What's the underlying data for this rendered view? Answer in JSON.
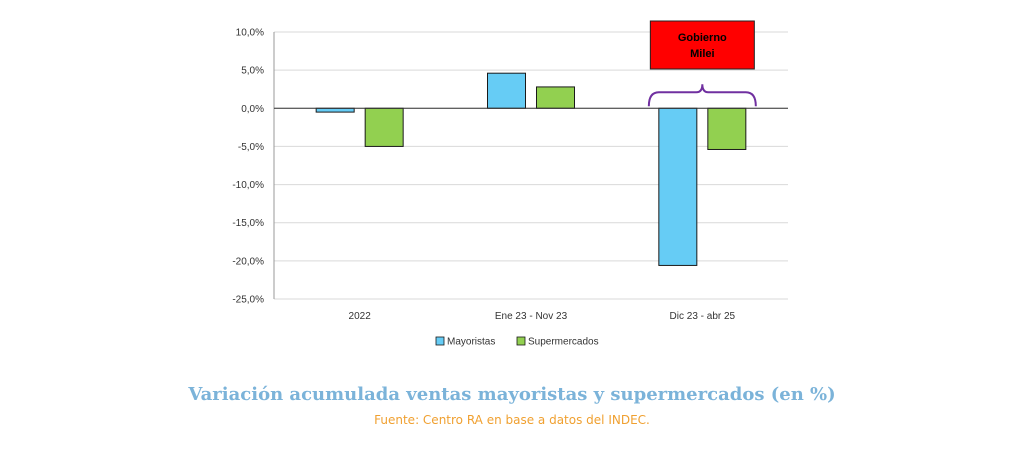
{
  "chart_data": {
    "type": "bar",
    "categories": [
      "2022",
      "Ene 23 - Nov 23",
      "Dic 23 - abr 25"
    ],
    "series": [
      {
        "name": "Mayoristas",
        "values": [
          -0.5,
          4.6,
          -20.6
        ],
        "color": "#66CCF5"
      },
      {
        "name": "Supermercados",
        "values": [
          -5.0,
          2.8,
          -5.4
        ],
        "color": "#92D050"
      }
    ],
    "yticks": [
      "10,0%",
      "5,0%",
      "0,0%",
      "-5,0%",
      "-10,0%",
      "-15,0%",
      "-20,0%",
      "-25,0%"
    ],
    "ylim": [
      -25,
      10
    ],
    "grid": true,
    "legend": "bottom",
    "annotation": {
      "lines": [
        "Gobierno",
        "Milei"
      ],
      "category": "Dic 23 - abr 25",
      "box_color": "#FF0000",
      "bracket_color": "#7030A0"
    }
  },
  "caption": {
    "title": "Variación acumulada ventas mayoristas y supermercados (en %)",
    "title_color": "#7BB3D9",
    "source": "Fuente: Centro RA en base a datos del INDEC.",
    "source_color": "#F0A030"
  }
}
